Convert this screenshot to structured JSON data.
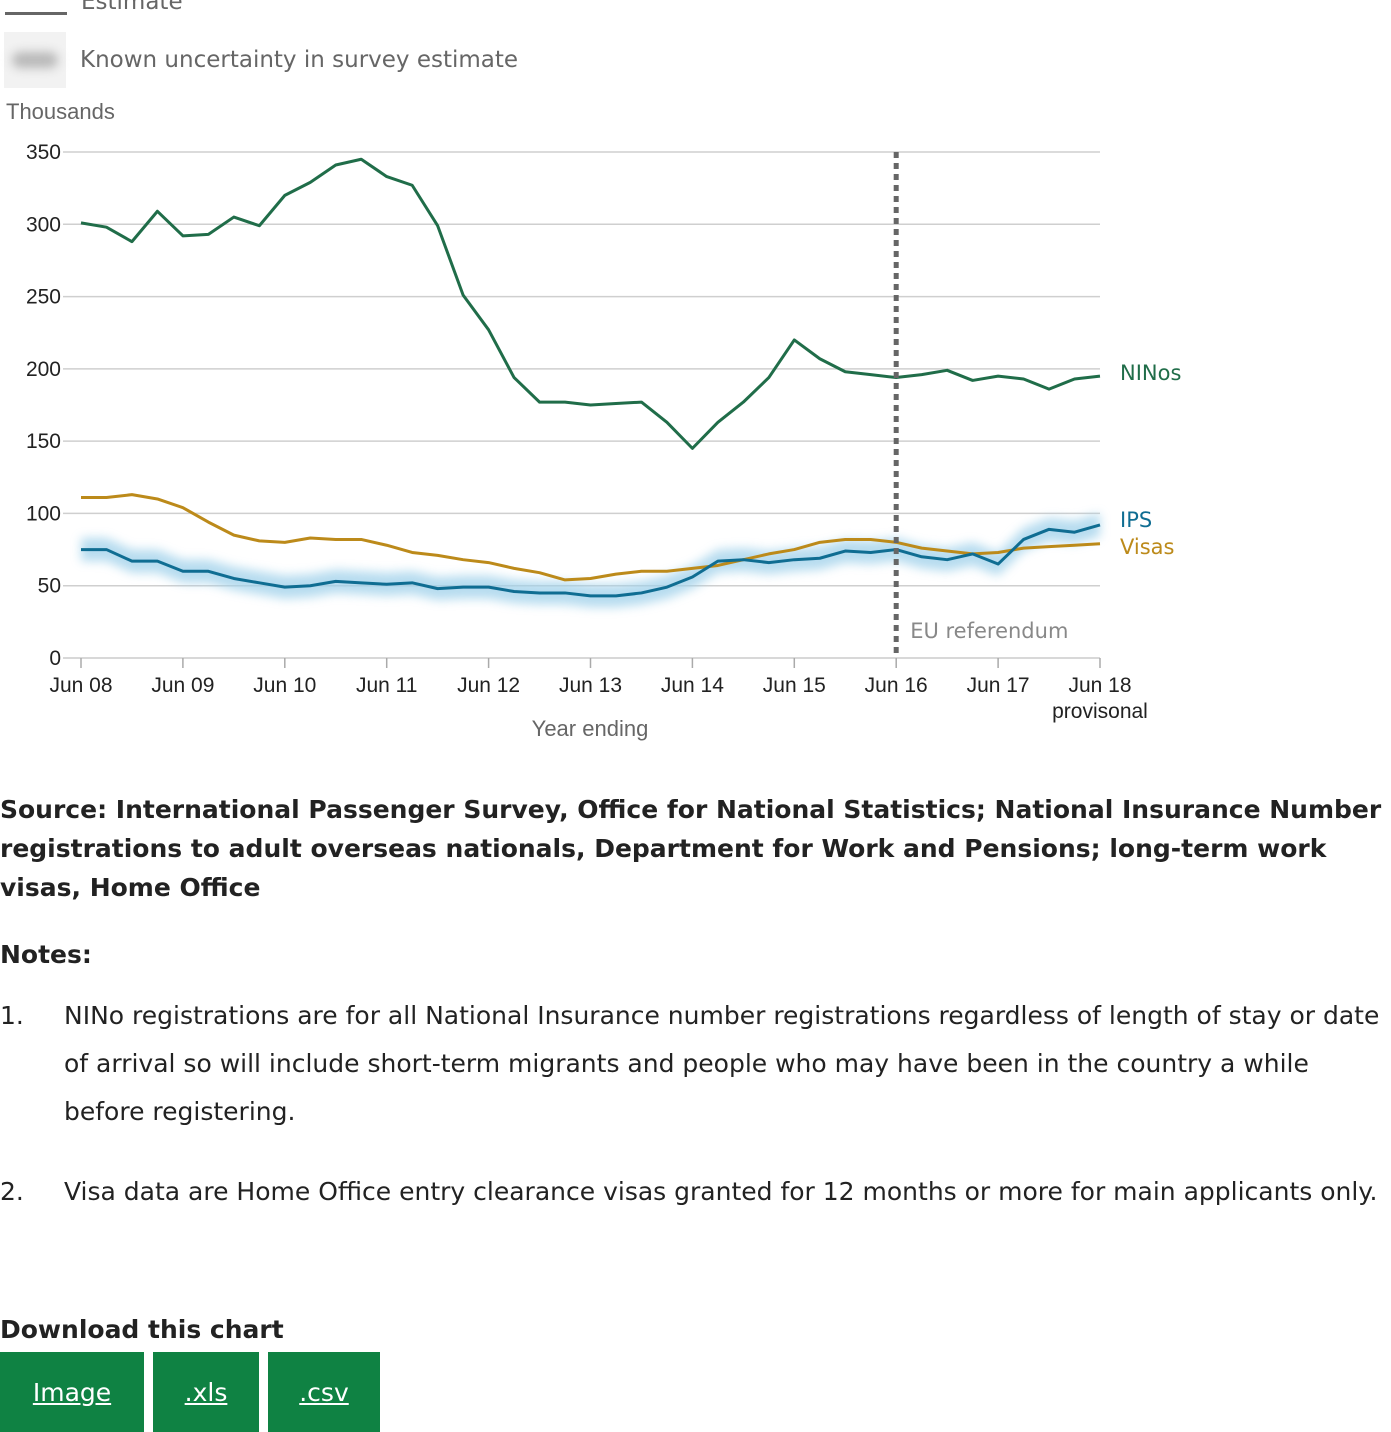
{
  "legend": {
    "estimate_label": "Estimate",
    "uncertainty_label": "Known uncertainty in survey estimate"
  },
  "chart_data": {
    "type": "line",
    "y_unit_label": "Thousands",
    "xlabel": "Year ending",
    "ylim": [
      0,
      350
    ],
    "yticks": [
      0,
      50,
      100,
      150,
      200,
      250,
      300,
      350
    ],
    "xtick_labels": [
      "Jun 08",
      "Jun 09",
      "Jun 10",
      "Jun 11",
      "Jun 12",
      "Jun 13",
      "Jun 14",
      "Jun 15",
      "Jun 16",
      "Jun 17",
      "Jun 18"
    ],
    "xtick_sublabel": "provisonal",
    "grid": true,
    "x": [
      "Jun 08",
      "Sep 08",
      "Dec 08",
      "Mar 09",
      "Jun 09",
      "Sep 09",
      "Dec 09",
      "Mar 10",
      "Jun 10",
      "Sep 10",
      "Dec 10",
      "Mar 11",
      "Jun 11",
      "Sep 11",
      "Dec 11",
      "Mar 12",
      "Jun 12",
      "Sep 12",
      "Dec 12",
      "Mar 13",
      "Jun 13",
      "Sep 13",
      "Dec 13",
      "Mar 14",
      "Jun 14",
      "Sep 14",
      "Dec 14",
      "Mar 15",
      "Jun 15",
      "Sep 15",
      "Dec 15",
      "Mar 16",
      "Jun 16",
      "Sep 16",
      "Dec 16",
      "Mar 17",
      "Jun 17",
      "Sep 17",
      "Dec 17",
      "Mar 18",
      "Jun 18"
    ],
    "series": [
      {
        "name": "NINos",
        "color": "#206d49",
        "values": [
          301,
          298,
          288,
          309,
          292,
          293,
          305,
          299,
          320,
          329,
          341,
          345,
          333,
          327,
          299,
          251,
          227,
          194,
          177,
          177,
          175,
          176,
          177,
          163,
          145,
          163,
          177,
          194,
          220,
          207,
          198,
          196,
          194,
          196,
          199,
          192,
          195,
          193,
          186,
          193,
          195
        ]
      },
      {
        "name": "Visas",
        "color": "#bc8a1a",
        "values": [
          111,
          111,
          113,
          110,
          104,
          94,
          85,
          81,
          80,
          83,
          82,
          82,
          78,
          73,
          71,
          68,
          66,
          62,
          59,
          54,
          55,
          58,
          60,
          60,
          62,
          64,
          68,
          72,
          75,
          80,
          82,
          82,
          80,
          76,
          74,
          72,
          73,
          76,
          77,
          78,
          79
        ]
      },
      {
        "name": "IPS",
        "color": "#0f6d92",
        "uncertainty": 8,
        "values": [
          75,
          75,
          67,
          67,
          60,
          60,
          55,
          52,
          49,
          50,
          53,
          52,
          51,
          52,
          48,
          49,
          49,
          46,
          45,
          45,
          43,
          43,
          45,
          49,
          56,
          67,
          68,
          66,
          68,
          69,
          74,
          73,
          75,
          70,
          68,
          72,
          65,
          82,
          89,
          87,
          92
        ]
      }
    ],
    "annotations": [
      {
        "label": "EU referendum",
        "x": "Jun 16"
      }
    ]
  },
  "source_text": "Source: International Passenger Survey, Office for National Statistics; National Insurance Number registrations to adult overseas nationals, Department for Work and Pensions; long-term work visas, Home Office",
  "notes": {
    "title": "Notes:",
    "items": [
      {
        "num": "1.",
        "text": "NINo registrations are for all National Insurance number registrations regardless of length of stay or date of arrival so will include short-term migrants and people who may have been in the country a while before registering."
      },
      {
        "num": "2.",
        "text": "Visa data are Home Office entry clearance visas granted for 12 months or more for main applicants only."
      }
    ]
  },
  "download": {
    "title": "Download this chart",
    "buttons": [
      "Image",
      ".xls",
      ".csv"
    ]
  }
}
